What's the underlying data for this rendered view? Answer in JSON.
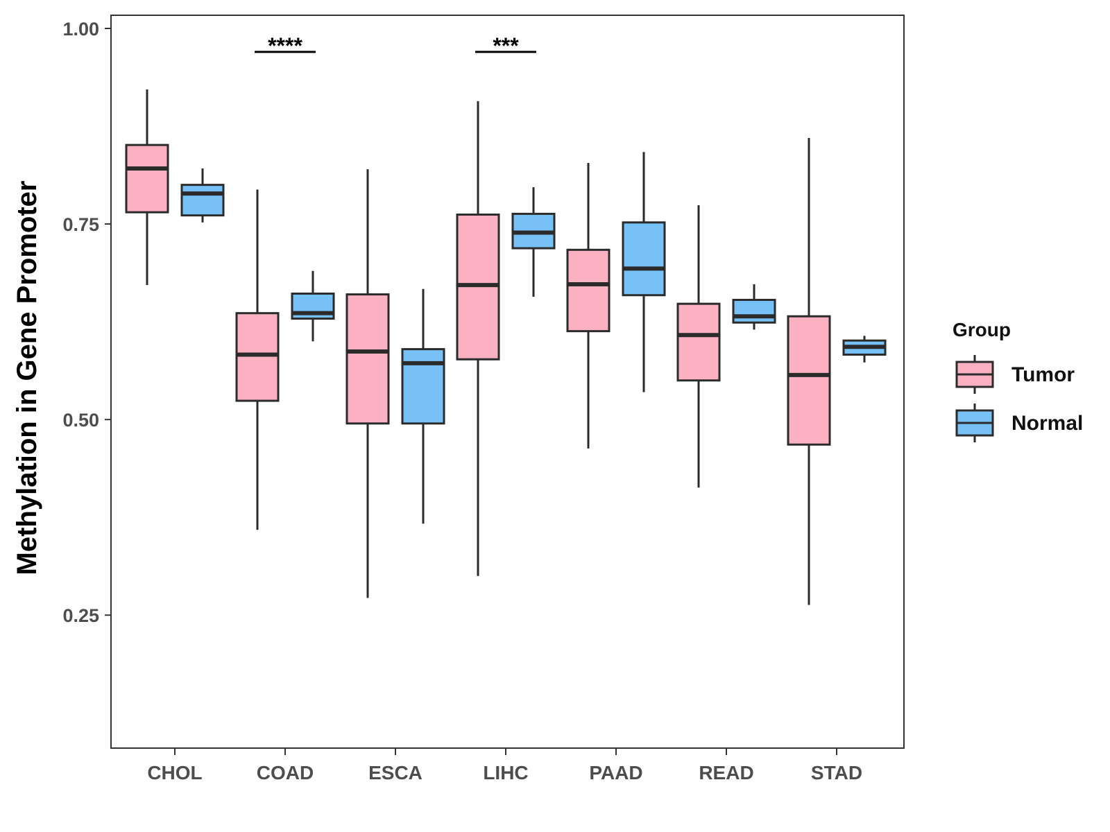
{
  "chart_data": {
    "type": "boxplot",
    "ylabel": "Methylation in Gene Promoter",
    "xlabel": "",
    "ylim": [
      0.08,
      1.02
    ],
    "yticks": [
      0.25,
      0.5,
      0.75,
      1.0
    ],
    "ytick_labels": [
      "0.25",
      "0.50",
      "0.75",
      "1.00"
    ],
    "categories": [
      "CHOL",
      "COAD",
      "ESCA",
      "LIHC",
      "PAAD",
      "READ",
      "STAD"
    ],
    "legend": {
      "title": "Group",
      "placement": "right",
      "entries": [
        {
          "name": "Tumor",
          "color": "#fbb1c2"
        },
        {
          "name": "Normal",
          "color": "#78c1f6"
        }
      ]
    },
    "series": [
      {
        "name": "Tumor",
        "color": "#fbb1c2",
        "boxes": [
          {
            "min": 0.672,
            "q1": 0.765,
            "median": 0.821,
            "q3": 0.851,
            "max": 0.922
          },
          {
            "min": 0.359,
            "q1": 0.524,
            "median": 0.583,
            "q3": 0.636,
            "max": 0.794
          },
          {
            "min": 0.272,
            "q1": 0.495,
            "median": 0.587,
            "q3": 0.66,
            "max": 0.82
          },
          {
            "min": 0.3,
            "q1": 0.577,
            "median": 0.672,
            "q3": 0.762,
            "max": 0.907
          },
          {
            "min": 0.463,
            "q1": 0.613,
            "median": 0.673,
            "q3": 0.717,
            "max": 0.828
          },
          {
            "min": 0.413,
            "q1": 0.55,
            "median": 0.608,
            "q3": 0.648,
            "max": 0.774
          },
          {
            "min": 0.263,
            "q1": 0.468,
            "median": 0.557,
            "q3": 0.632,
            "max": 0.86
          }
        ]
      },
      {
        "name": "Normal",
        "color": "#78c1f6",
        "boxes": [
          {
            "min": 0.752,
            "q1": 0.761,
            "median": 0.789,
            "q3": 0.8,
            "max": 0.821
          },
          {
            "min": 0.6,
            "q1": 0.629,
            "median": 0.636,
            "q3": 0.661,
            "max": 0.69
          },
          {
            "min": 0.367,
            "q1": 0.495,
            "median": 0.572,
            "q3": 0.59,
            "max": 0.667
          },
          {
            "min": 0.657,
            "q1": 0.719,
            "median": 0.739,
            "q3": 0.763,
            "max": 0.797
          },
          {
            "min": 0.535,
            "q1": 0.659,
            "median": 0.693,
            "q3": 0.752,
            "max": 0.842
          },
          {
            "min": 0.615,
            "q1": 0.624,
            "median": 0.632,
            "q3": 0.653,
            "max": 0.673
          },
          {
            "min": 0.573,
            "q1": 0.583,
            "median": 0.593,
            "q3": 0.601,
            "max": 0.607
          }
        ]
      }
    ],
    "annotations": [
      {
        "category": "COAD",
        "label": "****",
        "y": 0.97
      },
      {
        "category": "LIHC",
        "label": "***",
        "y": 0.97
      }
    ]
  }
}
